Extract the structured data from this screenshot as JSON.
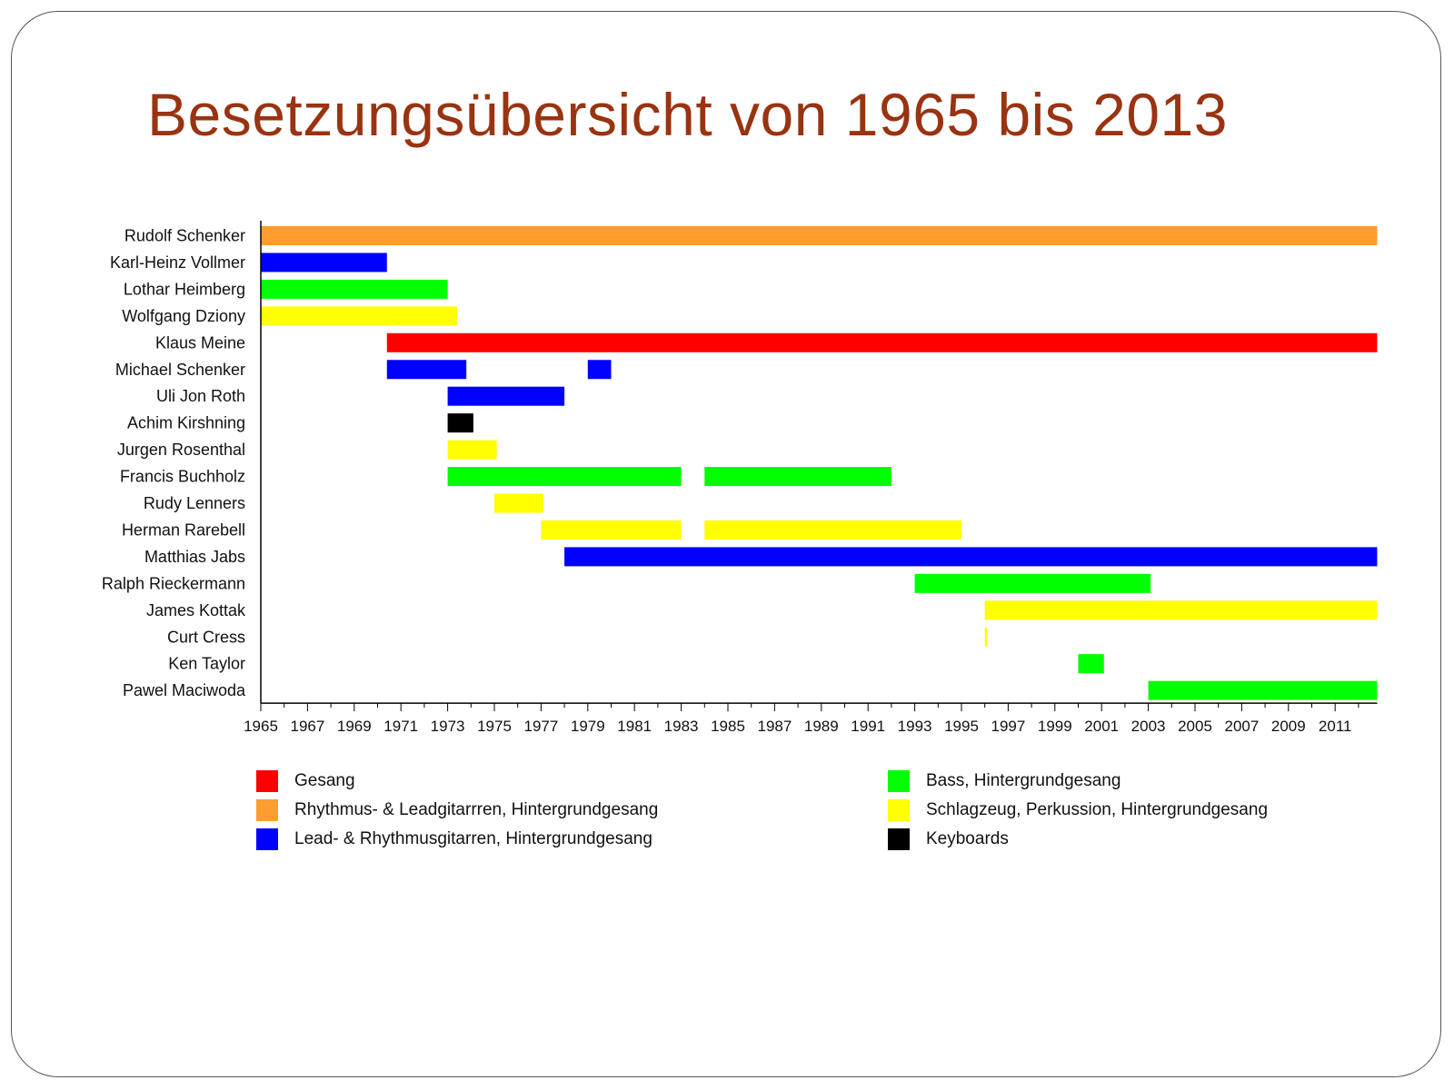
{
  "slide": {
    "title": "Besetzungsübersicht von 1965 bis 2013"
  },
  "colors": {
    "Gesang": "#ff0000",
    "Rhythmus": "#ff9d2e",
    "Lead": "#0000ff",
    "Bass": "#00ff00",
    "Schlagzeug": "#ffff00",
    "Keyboards": "#000000"
  },
  "chart_data": {
    "type": "timeline",
    "x_range": [
      1965,
      2012.8
    ],
    "x_ticks": [
      "1965",
      "1967",
      "1969",
      "1971",
      "1973",
      "1975",
      "1977",
      "1979",
      "1981",
      "1983",
      "1985",
      "1987",
      "1989",
      "1991",
      "1993",
      "1995",
      "1997",
      "1999",
      "2001",
      "2003",
      "2005",
      "2007",
      "2009",
      "2011"
    ],
    "rows": [
      {
        "name": "Rudolf Schenker",
        "spans": [
          {
            "start": 1965,
            "end": 2012.8,
            "role": "Rhythmus"
          }
        ]
      },
      {
        "name": "Karl-Heinz Vollmer",
        "spans": [
          {
            "start": 1965,
            "end": 1970.4,
            "role": "Lead"
          }
        ]
      },
      {
        "name": "Lothar Heimberg",
        "spans": [
          {
            "start": 1965,
            "end": 1973,
            "role": "Bass"
          }
        ]
      },
      {
        "name": "Wolfgang Dziony",
        "spans": [
          {
            "start": 1965,
            "end": 1973.4,
            "role": "Schlagzeug"
          }
        ]
      },
      {
        "name": "Klaus Meine",
        "spans": [
          {
            "start": 1970.4,
            "end": 2012.8,
            "role": "Gesang"
          }
        ]
      },
      {
        "name": "Michael Schenker",
        "spans": [
          {
            "start": 1970.4,
            "end": 1973.8,
            "role": "Lead"
          },
          {
            "start": 1979,
            "end": 1980,
            "role": "Lead"
          }
        ]
      },
      {
        "name": "Uli Jon Roth",
        "spans": [
          {
            "start": 1973,
            "end": 1978,
            "role": "Lead"
          }
        ]
      },
      {
        "name": "Achim Kirshning",
        "spans": [
          {
            "start": 1973,
            "end": 1974.1,
            "role": "Keyboards"
          }
        ]
      },
      {
        "name": "Jurgen Rosenthal",
        "spans": [
          {
            "start": 1973,
            "end": 1975.1,
            "role": "Schlagzeug"
          }
        ]
      },
      {
        "name": "Francis Buchholz",
        "spans": [
          {
            "start": 1973,
            "end": 1983,
            "role": "Bass"
          },
          {
            "start": 1984,
            "end": 1992,
            "role": "Bass"
          }
        ]
      },
      {
        "name": "Rudy Lenners",
        "spans": [
          {
            "start": 1975,
            "end": 1977.1,
            "role": "Schlagzeug"
          }
        ]
      },
      {
        "name": "Herman Rarebell",
        "spans": [
          {
            "start": 1977,
            "end": 1983,
            "role": "Schlagzeug"
          },
          {
            "start": 1984,
            "end": 1995,
            "role": "Schlagzeug"
          }
        ]
      },
      {
        "name": "Matthias Jabs",
        "spans": [
          {
            "start": 1978,
            "end": 2012.8,
            "role": "Lead"
          }
        ]
      },
      {
        "name": "Ralph Rieckermann",
        "spans": [
          {
            "start": 1993,
            "end": 2003.1,
            "role": "Bass"
          }
        ]
      },
      {
        "name": "James Kottak",
        "spans": [
          {
            "start": 1996,
            "end": 2012.8,
            "role": "Schlagzeug"
          }
        ]
      },
      {
        "name": "Curt Cress",
        "spans": [
          {
            "start": 1996,
            "end": 1996.1,
            "role": "Schlagzeug"
          }
        ]
      },
      {
        "name": "Ken Taylor",
        "spans": [
          {
            "start": 2000,
            "end": 2001.1,
            "role": "Bass"
          }
        ]
      },
      {
        "name": "Pawel Maciwoda",
        "spans": [
          {
            "start": 2003,
            "end": 2012.8,
            "role": "Bass"
          }
        ]
      }
    ]
  },
  "legend": {
    "left": [
      {
        "label": "Gesang",
        "role": "Gesang"
      },
      {
        "label": "Rhythmus- & Leadgitarrren, Hintergrundgesang",
        "role": "Rhythmus"
      },
      {
        "label": "Lead- & Rhythmusgitarren, Hintergrundgesang",
        "role": "Lead"
      }
    ],
    "right": [
      {
        "label": "Bass, Hintergrundgesang",
        "role": "Bass"
      },
      {
        "label": "Schlagzeug, Perkussion, Hintergrundgesang",
        "role": "Schlagzeug"
      },
      {
        "label": "Keyboards",
        "role": "Keyboards"
      }
    ]
  }
}
